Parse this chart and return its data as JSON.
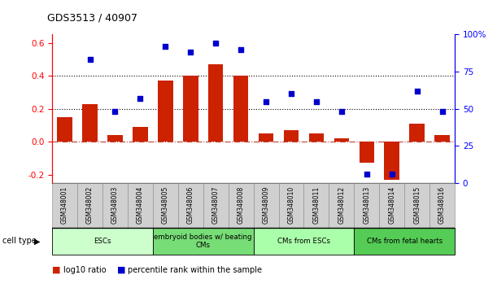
{
  "title": "GDS3513 / 40907",
  "samples": [
    "GSM348001",
    "GSM348002",
    "GSM348003",
    "GSM348004",
    "GSM348005",
    "GSM348006",
    "GSM348007",
    "GSM348008",
    "GSM348009",
    "GSM348010",
    "GSM348011",
    "GSM348012",
    "GSM348013",
    "GSM348014",
    "GSM348015",
    "GSM348016"
  ],
  "log10_ratio": [
    0.15,
    0.23,
    0.04,
    0.09,
    0.37,
    0.4,
    0.47,
    0.4,
    0.05,
    0.07,
    0.05,
    0.02,
    -0.13,
    -0.23,
    0.11,
    0.04
  ],
  "percentile_rank": [
    null,
    83,
    48,
    57,
    92,
    88,
    94,
    90,
    55,
    60,
    55,
    48,
    6,
    6,
    62,
    48
  ],
  "bar_color": "#cc2200",
  "dot_color": "#0000cc",
  "left_ylim": [
    -0.25,
    0.65
  ],
  "right_ylim": [
    0,
    100
  ],
  "left_yticks": [
    -0.2,
    0.0,
    0.2,
    0.4,
    0.6
  ],
  "right_yticks": [
    0,
    25,
    50,
    75,
    100
  ],
  "hlines": [
    0.2,
    0.4
  ],
  "zero_line": 0.0,
  "cell_type_groups": [
    {
      "label": "ESCs",
      "start": 0,
      "end": 3,
      "color": "#ccffcc"
    },
    {
      "label": "embryoid bodies w/ beating\nCMs",
      "start": 4,
      "end": 7,
      "color": "#77dd77"
    },
    {
      "label": "CMs from ESCs",
      "start": 8,
      "end": 11,
      "color": "#aaffaa"
    },
    {
      "label": "CMs from fetal hearts",
      "start": 12,
      "end": 15,
      "color": "#55cc55"
    }
  ],
  "legend_bar_label": "log10 ratio",
  "legend_dot_label": "percentile rank within the sample",
  "cell_type_label": "cell type",
  "fig_width": 6.11,
  "fig_height": 3.54,
  "dpi": 100
}
